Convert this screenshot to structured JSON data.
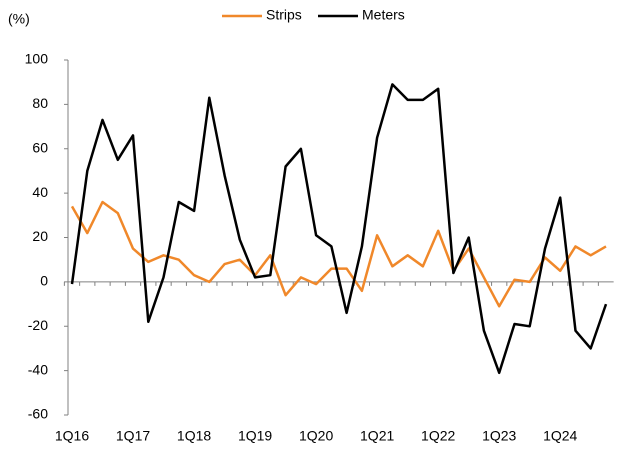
{
  "chart_data": {
    "type": "line",
    "y_label": "(%)",
    "categories": [
      "1Q16",
      null,
      null,
      null,
      "1Q17",
      null,
      null,
      null,
      "1Q18",
      null,
      null,
      null,
      "1Q19",
      null,
      null,
      null,
      "1Q20",
      null,
      null,
      null,
      "1Q21",
      null,
      null,
      null,
      "1Q22",
      null,
      null,
      null,
      "1Q23",
      null,
      null,
      null,
      "1Q24",
      null,
      null,
      null
    ],
    "series": [
      {
        "name": "Strips",
        "color": "#f0882a",
        "values": [
          34,
          22,
          36,
          31,
          15,
          9,
          12,
          10,
          3,
          0,
          8,
          10,
          3,
          12,
          -6,
          2,
          -1,
          6,
          6,
          -4,
          21,
          7,
          12,
          7,
          23,
          5,
          15,
          2,
          -11,
          1,
          0,
          11,
          5,
          16,
          12,
          16
        ]
      },
      {
        "name": "Meters",
        "color": "#000000",
        "values": [
          -1,
          50,
          73,
          55,
          66,
          -18,
          2,
          36,
          32,
          83,
          48,
          19,
          2,
          3,
          52,
          60,
          21,
          16,
          -14,
          16,
          65,
          89,
          82,
          82,
          87,
          4,
          20,
          -22,
          -41,
          -19,
          -20,
          15,
          38,
          -22,
          -30,
          -10
        ]
      }
    ],
    "ylim": [
      -60,
      100
    ],
    "yticks": [
      -60,
      -40,
      -20,
      0,
      20,
      40,
      60,
      80,
      100
    ],
    "grid": false,
    "legend": "top"
  }
}
